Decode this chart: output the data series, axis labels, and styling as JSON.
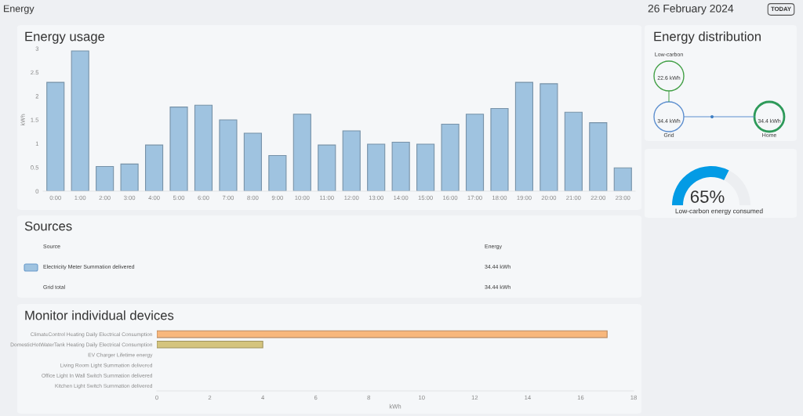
{
  "chart_data": [
    {
      "type": "other",
      "title": "Energy",
      "annotations": [
        "26 February 2024",
        "TODAY"
      ]
    },
    {
      "type": "bar",
      "title": "Energy usage",
      "ylabel": "kWh",
      "categories": [
        "0:00",
        "1:00",
        "2:00",
        "3:00",
        "4:00",
        "5:00",
        "6:00",
        "7:00",
        "8:00",
        "9:00",
        "10:00",
        "11:00",
        "12:00",
        "13:00",
        "14:00",
        "15:00",
        "16:00",
        "17:00",
        "18:00",
        "19:00",
        "20:00",
        "21:00",
        "22:00",
        "23:00"
      ],
      "series": [
        {
          "color": "#9fc3e0",
          "values": [
            2.29,
            2.95,
            0.52,
            0.57,
            0.97,
            1.77,
            1.81,
            1.5,
            1.22,
            0.75,
            1.62,
            0.97,
            1.27,
            0.99,
            1.03,
            0.99,
            1.41,
            1.62,
            1.74,
            2.29,
            2.26,
            1.66,
            1.44,
            0.49
          ]
        }
      ],
      "ylim": [
        0,
        3
      ],
      "yticks": [
        0,
        0.5,
        1,
        1.5,
        2,
        2.5,
        3
      ],
      "grid": false
    },
    {
      "type": "other",
      "title": "Energy distribution",
      "annotations": [
        "Low-carbon",
        "22.6 kWh",
        "34.4 kWh",
        "Grid",
        "34.4 kWh",
        "Home"
      ]
    },
    {
      "type": "donut",
      "categories": [
        null,
        null
      ],
      "values": [
        65,
        35
      ],
      "colors": [
        "#039be5",
        "#eceef1"
      ],
      "value_labels": [
        "65%",
        null
      ],
      "annotations": [
        "Low-carbon energy consumed"
      ]
    },
    {
      "type": "other",
      "title": "Sources",
      "annotations": [
        "Source",
        "Energy",
        "Electricity Meter Summation delivered",
        "34.44 kWh",
        "Grid total",
        "34.44 kWh"
      ]
    },
    {
      "type": "bar",
      "orientation": "horizontal",
      "title": "Monitor individual devices",
      "xlabel": "kWh",
      "categories": [
        "ClimateControl Heating Daily Electrical Consumption",
        "DomesticHotWaterTank Heating Daily Electrical Consumption",
        "EV Charger Lifetime energy",
        "Living Room Light Summation delivered",
        "Office Light In Wall Switch Summation delivered",
        "Kitchen Light Switch Summation delivered"
      ],
      "values": [
        17.0,
        4.0,
        0,
        0,
        0,
        0
      ],
      "colors": [
        "#f8b77c",
        "#d4c47e",
        null,
        null,
        null,
        null
      ],
      "xlim": [
        0,
        18
      ],
      "xticks": [
        0,
        2,
        4,
        6,
        8,
        10,
        12,
        14,
        16,
        18
      ],
      "grid": false
    }
  ]
}
